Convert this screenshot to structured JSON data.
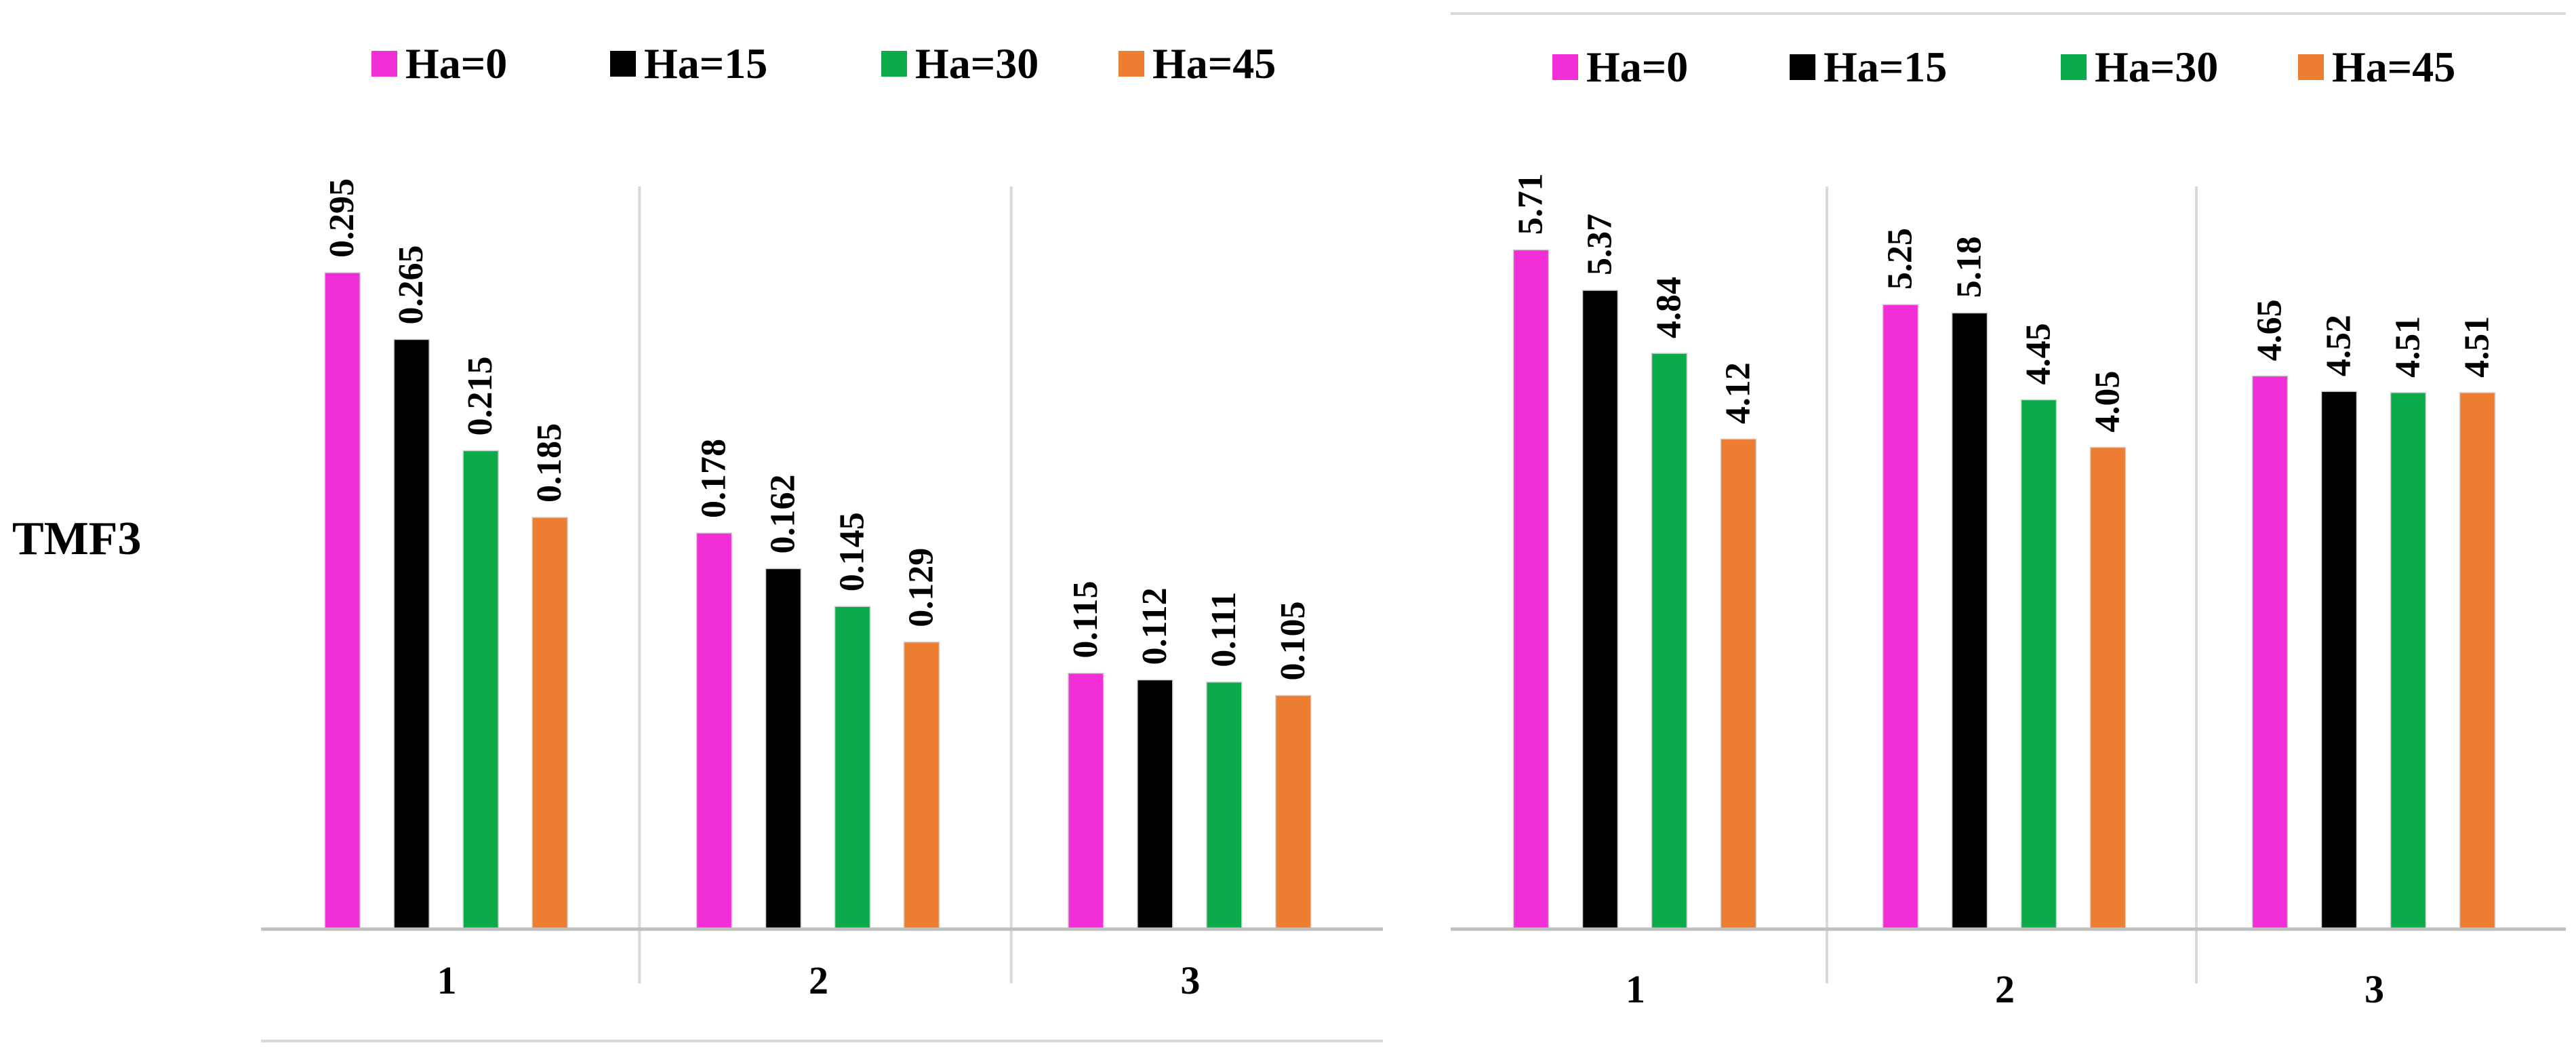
{
  "row_label": "TMF3",
  "colors": [
    "#f22ed6",
    "#000000",
    "#0caa4a",
    "#ed7d31"
  ],
  "chart_data": [
    {
      "type": "bar",
      "title": "",
      "xlabel": "",
      "ylabel": "",
      "categories": [
        "1",
        "2",
        "3"
      ],
      "ylim": [
        0,
        0.32
      ],
      "grid": false,
      "legend_position": "top",
      "series": [
        {
          "name": "Ha=0",
          "values": [
            0.295,
            0.178,
            0.115
          ]
        },
        {
          "name": "Ha=15",
          "values": [
            0.265,
            0.162,
            0.112
          ]
        },
        {
          "name": "Ha=30",
          "values": [
            0.215,
            0.145,
            0.111
          ]
        },
        {
          "name": "Ha=45",
          "values": [
            0.185,
            0.129,
            0.105
          ]
        }
      ],
      "data_labels": [
        [
          "0.295",
          "0.178",
          "0.115"
        ],
        [
          "0.265",
          "0.162",
          "0.112"
        ],
        [
          "0.215",
          "0.145",
          "0.111"
        ],
        [
          "0.185",
          "0.129",
          "0.105"
        ]
      ]
    },
    {
      "type": "bar",
      "title": "",
      "xlabel": "",
      "ylabel": "",
      "categories": [
        "1",
        "2",
        "3"
      ],
      "ylim": [
        0,
        6.1
      ],
      "grid": false,
      "legend_position": "top",
      "series": [
        {
          "name": "Ha=0",
          "values": [
            5.71,
            5.25,
            4.65
          ]
        },
        {
          "name": "Ha=15",
          "values": [
            5.37,
            5.18,
            4.52
          ]
        },
        {
          "name": "Ha=30",
          "values": [
            4.84,
            4.45,
            4.51
          ]
        },
        {
          "name": "Ha=45",
          "values": [
            4.12,
            4.05,
            4.51
          ]
        }
      ],
      "data_labels": [
        [
          "5.71",
          "5.25",
          "4.65"
        ],
        [
          "5.37",
          "5.18",
          "4.52"
        ],
        [
          "4.84",
          "4.45",
          "4.51"
        ],
        [
          "4.12",
          "4.05",
          "4.51"
        ]
      ]
    }
  ]
}
